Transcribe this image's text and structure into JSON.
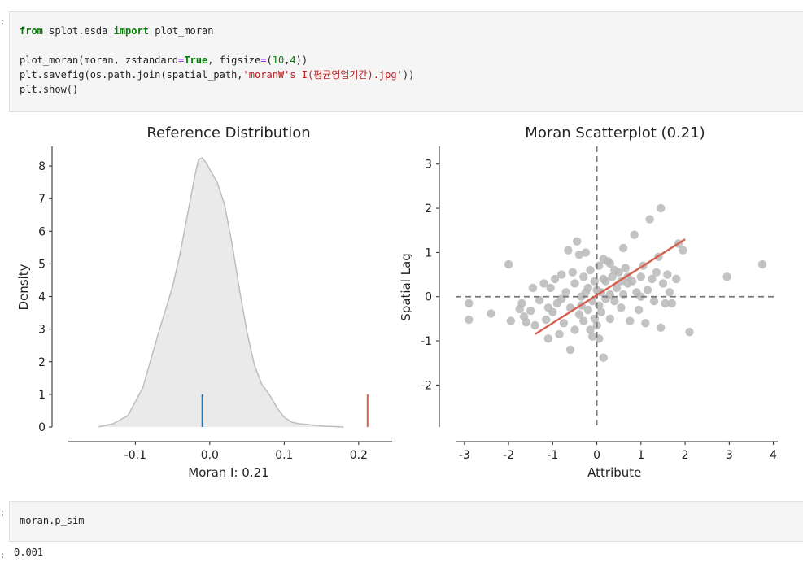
{
  "cell1": {
    "line1_kw1": "from",
    "line1_mod": " splot.esda ",
    "line1_kw2": "import",
    "line1_name": " plot_moran",
    "line2_a": "plot_moran(moran, zstandard",
    "line2_eq": "=",
    "line2_true": "True",
    "line2_b": ", figsize",
    "line2_eq2": "=",
    "line2_c": "(",
    "line2_n1": "10",
    "line2_d": ",",
    "line2_n2": "4",
    "line2_e": "))",
    "line3_a": "plt.savefig(os.path.join(spatial_path,",
    "line3_str": "'moran₩'s I(평균영업기간).jpg'",
    "line3_b": "))",
    "line4": "plt.show()"
  },
  "cell2": {
    "code": "moran.p_sim"
  },
  "output2": "0.001",
  "chart_data": [
    {
      "type": "area",
      "title": "Reference Distribution",
      "xlabel": "Moran I: 0.21",
      "ylabel": "Density",
      "xlim": [
        -0.19,
        0.245
      ],
      "ylim": [
        0,
        8.6
      ],
      "xticks": [
        -0.1,
        0.0,
        0.1,
        0.2
      ],
      "xtick_labels": [
        "-0.1",
        "0.0",
        "0.1",
        "0.2"
      ],
      "yticks": [
        0,
        1,
        2,
        3,
        4,
        5,
        6,
        7,
        8
      ],
      "ytick_labels": [
        "0",
        "1",
        "2",
        "3",
        "4",
        "5",
        "6",
        "7",
        "8"
      ],
      "kde": {
        "x": [
          -0.15,
          -0.13,
          -0.11,
          -0.09,
          -0.07,
          -0.05,
          -0.04,
          -0.03,
          -0.02,
          -0.015,
          -0.01,
          -0.005,
          0.0,
          0.01,
          0.02,
          0.03,
          0.04,
          0.05,
          0.06,
          0.07,
          0.08,
          0.09,
          0.1,
          0.11,
          0.12,
          0.13,
          0.15,
          0.18
        ],
        "y": [
          0.0,
          0.1,
          0.35,
          1.2,
          2.8,
          4.3,
          5.3,
          6.5,
          7.7,
          8.2,
          8.25,
          8.1,
          7.9,
          7.5,
          6.8,
          5.6,
          4.2,
          2.9,
          1.9,
          1.3,
          1.0,
          0.6,
          0.3,
          0.15,
          0.1,
          0.08,
          0.03,
          0.0
        ]
      },
      "expected_I_line": {
        "x": -0.01,
        "height": 1,
        "color": "#1f77b4"
      },
      "observed_I_line": {
        "x": 0.212,
        "height": 1,
        "color": "#d6604d"
      },
      "fill_color": "#eaeaea",
      "line_color": "#bdbdbd",
      "grid": false
    },
    {
      "type": "scatter",
      "title": "Moran Scatterplot (0.21)",
      "xlabel": "Attribute",
      "ylabel": "Spatial Lag",
      "xlim": [
        -3.2,
        4.1
      ],
      "ylim": [
        -2.95,
        3.4
      ],
      "xticks": [
        -3,
        -2,
        -1,
        0,
        1,
        2,
        3,
        4
      ],
      "xtick_labels": [
        "-3",
        "-2",
        "-1",
        "0",
        "1",
        "2",
        "3",
        "4"
      ],
      "yticks": [
        -2,
        -1,
        0,
        1,
        2,
        3
      ],
      "ytick_labels": [
        "-2",
        "-1",
        "0",
        "1",
        "2",
        "3"
      ],
      "point_color": "#b8b8b8",
      "regression_line": {
        "x": [
          -1.4,
          2.0
        ],
        "y": [
          -0.85,
          1.3
        ],
        "color": "#d6604d"
      },
      "crosshair": {
        "x": 0,
        "y": 0,
        "style": "dashed",
        "color": "#777777"
      },
      "grid": false,
      "points": [
        [
          -2.9,
          -0.15
        ],
        [
          -2.9,
          -0.52
        ],
        [
          -2.4,
          -0.38
        ],
        [
          -2.0,
          0.73
        ],
        [
          -1.95,
          -0.55
        ],
        [
          -1.75,
          -0.28
        ],
        [
          -1.7,
          -0.15
        ],
        [
          -1.65,
          -0.45
        ],
        [
          -1.6,
          -0.58
        ],
        [
          -1.5,
          -0.32
        ],
        [
          -1.45,
          0.2
        ],
        [
          -1.4,
          -0.65
        ],
        [
          -1.3,
          -0.08
        ],
        [
          -1.2,
          0.3
        ],
        [
          -1.15,
          -0.52
        ],
        [
          -1.1,
          -0.95
        ],
        [
          -1.05,
          0.2
        ],
        [
          -1.0,
          -0.35
        ],
        [
          -0.95,
          0.4
        ],
        [
          -0.9,
          -0.15
        ],
        [
          -0.85,
          -0.85
        ],
        [
          -0.8,
          -0.05
        ],
        [
          -0.75,
          -0.6
        ],
        [
          -0.7,
          0.1
        ],
        [
          -0.65,
          1.05
        ],
        [
          -0.6,
          -0.25
        ],
        [
          -0.55,
          0.55
        ],
        [
          -0.5,
          -0.75
        ],
        [
          -0.5,
          0.3
        ],
        [
          -0.45,
          1.25
        ],
        [
          -0.4,
          -0.4
        ],
        [
          -0.4,
          0.95
        ],
        [
          -0.35,
          0.0
        ],
        [
          -0.3,
          -0.55
        ],
        [
          -0.3,
          0.45
        ],
        [
          -0.25,
          1.0
        ],
        [
          -0.2,
          -0.3
        ],
        [
          -0.2,
          0.2
        ],
        [
          -0.15,
          -0.75
        ],
        [
          -0.15,
          0.6
        ],
        [
          -0.1,
          -0.9
        ],
        [
          -0.1,
          -0.1
        ],
        [
          -0.05,
          0.35
        ],
        [
          -0.05,
          -0.5
        ],
        [
          0.0,
          -0.65
        ],
        [
          0.0,
          0.15
        ],
        [
          0.05,
          -0.2
        ],
        [
          0.05,
          0.7
        ],
        [
          0.1,
          -0.35
        ],
        [
          0.1,
          0.1
        ],
        [
          0.15,
          0.85
        ],
        [
          0.15,
          -1.38
        ],
        [
          0.2,
          -0.05
        ],
        [
          0.2,
          0.35
        ],
        [
          0.25,
          0.8
        ],
        [
          0.3,
          0.05
        ],
        [
          0.3,
          -0.5
        ],
        [
          0.35,
          0.45
        ],
        [
          0.4,
          -0.1
        ],
        [
          0.45,
          0.2
        ],
        [
          0.5,
          0.55
        ],
        [
          0.55,
          -0.25
        ],
        [
          0.6,
          1.1
        ],
        [
          0.6,
          0.05
        ],
        [
          0.65,
          0.65
        ],
        [
          0.7,
          0.3
        ],
        [
          0.75,
          -0.55
        ],
        [
          0.8,
          0.35
        ],
        [
          0.85,
          1.4
        ],
        [
          0.9,
          0.1
        ],
        [
          0.95,
          -0.3
        ],
        [
          1.0,
          0.45
        ],
        [
          1.05,
          0.7
        ],
        [
          1.1,
          -0.6
        ],
        [
          1.15,
          0.15
        ],
        [
          1.2,
          1.75
        ],
        [
          1.25,
          0.4
        ],
        [
          1.3,
          -0.1
        ],
        [
          1.4,
          0.9
        ],
        [
          1.45,
          2.0
        ],
        [
          1.5,
          0.3
        ],
        [
          1.55,
          -0.15
        ],
        [
          1.6,
          0.5
        ],
        [
          1.65,
          0.1
        ],
        [
          1.7,
          -0.15
        ],
        [
          1.8,
          0.4
        ],
        [
          1.85,
          1.2
        ],
        [
          1.95,
          1.05
        ],
        [
          2.1,
          -0.8
        ],
        [
          2.95,
          0.45
        ],
        [
          3.75,
          0.73
        ],
        [
          1.45,
          -0.7
        ],
        [
          -0.6,
          -1.2
        ],
        [
          0.4,
          0.6
        ],
        [
          -0.25,
          0.1
        ],
        [
          0.05,
          -0.95
        ],
        [
          0.55,
          0.35
        ],
        [
          -0.8,
          0.5
        ],
        [
          1.0,
          0.0
        ],
        [
          0.3,
          0.75
        ],
        [
          -1.1,
          -0.25
        ],
        [
          0.7,
          0.45
        ],
        [
          -0.35,
          -0.2
        ],
        [
          0.15,
          0.4
        ],
        [
          1.35,
          0.55
        ]
      ]
    }
  ]
}
